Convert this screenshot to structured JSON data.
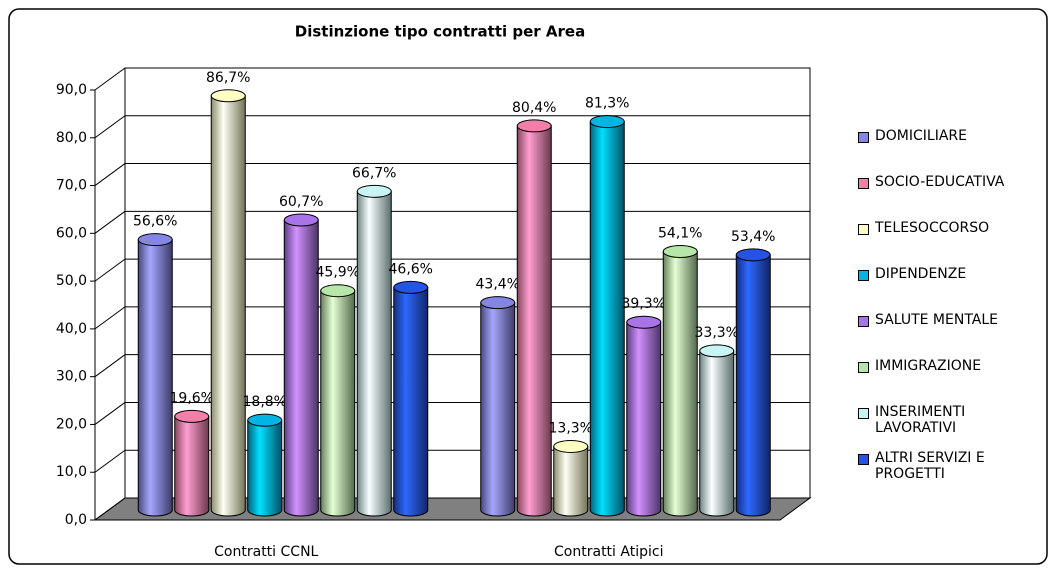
{
  "chart_data": {
    "type": "bar3d",
    "title": "Distinzione tipo contratti per Area",
    "categories": [
      "Contratti CCNL",
      "Contratti Atipici"
    ],
    "series": [
      {
        "name": "DOMICILIARE",
        "color": "#8585e6",
        "values": [
          56.6,
          43.4
        ],
        "value_labels": [
          "56,6%",
          "43,4%"
        ]
      },
      {
        "name": "SOCIO-EDUCATIVA",
        "color": "#f27fa8",
        "values": [
          19.6,
          80.4
        ],
        "value_labels": [
          "19,6%",
          "80,4%"
        ]
      },
      {
        "name": "TELESOCCORSO",
        "color": "#ffffc4",
        "values": [
          86.7,
          13.3
        ],
        "value_labels": [
          "86,7%",
          "13,3%"
        ]
      },
      {
        "name": "DIPENDENZE",
        "color": "#00b4e4",
        "values": [
          18.8,
          81.3
        ],
        "value_labels": [
          "18,8%",
          "81,3%"
        ]
      },
      {
        "name": "SALUTE MENTALE",
        "color": "#a874e8",
        "values": [
          60.7,
          39.3
        ],
        "value_labels": [
          "60,7%",
          "39,3%"
        ]
      },
      {
        "name": "IMMIGRAZIONE",
        "color": "#b6e6a8",
        "values": [
          45.9,
          54.1
        ],
        "value_labels": [
          "45,9%",
          "54,1%"
        ]
      },
      {
        "name": "INSERIMENTI LAVORATIVI",
        "color": "#c8f4f4",
        "values": [
          66.7,
          33.3
        ],
        "value_labels": [
          "66,7%",
          "33,3%"
        ]
      },
      {
        "name": "ALTRI SERVIZI E PROGETTI",
        "color": "#2454e6",
        "values": [
          46.6,
          53.4
        ],
        "value_labels": [
          "46,6%",
          "53,4%"
        ]
      }
    ],
    "ylim": [
      0,
      90
    ],
    "yticks": [
      {
        "value": 0,
        "label": "0,0"
      },
      {
        "value": 10,
        "label": "10,0"
      },
      {
        "value": 20,
        "label": "20,0"
      },
      {
        "value": 30,
        "label": "30,0"
      },
      {
        "value": 40,
        "label": "40,0"
      },
      {
        "value": 50,
        "label": "50,0"
      },
      {
        "value": 60,
        "label": "60,0"
      },
      {
        "value": 70,
        "label": "70,0"
      },
      {
        "value": 80,
        "label": "80,0"
      },
      {
        "value": 90,
        "label": "90,0"
      }
    ],
    "grid": true,
    "legend": "right"
  }
}
